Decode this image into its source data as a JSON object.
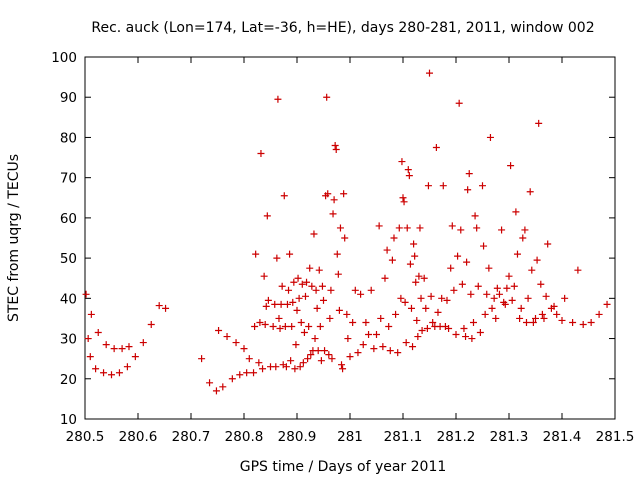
{
  "chart_data": {
    "type": "scatter",
    "title": "Rec. auck (Lon=174, Lat=-36, h=HE), days 280-281, 2011, window 002",
    "xlabel": "GPS time / Days of year 2011",
    "ylabel": "STEC from uqrg / TECUs",
    "xlim": [
      280.5,
      281.5
    ],
    "ylim": [
      10,
      100
    ],
    "xticks": [
      280.5,
      280.6,
      280.7,
      280.8,
      280.9,
      281.0,
      281.1,
      281.2,
      281.3,
      281.4,
      281.5
    ],
    "xtick_labels": [
      "280.5",
      "280.6",
      "280.7",
      "280.8",
      "280.9",
      "281",
      "281.1",
      "281.2",
      "281.3",
      "281.4",
      "281.5"
    ],
    "yticks": [
      10,
      20,
      30,
      40,
      50,
      60,
      70,
      80,
      90,
      100
    ],
    "ytick_labels": [
      "10",
      "20",
      "30",
      "40",
      "50",
      "60",
      "70",
      "80",
      "90",
      "100"
    ],
    "marker": "+",
    "color": "#cc0000",
    "grid": false,
    "series": [
      {
        "points": [
          [
            280.502,
            41
          ],
          [
            280.506,
            30
          ],
          [
            280.51,
            25.5
          ],
          [
            280.512,
            36
          ],
          [
            280.52,
            22.5
          ],
          [
            280.525,
            31.5
          ],
          [
            280.535,
            21.5
          ],
          [
            280.54,
            28.5
          ],
          [
            280.55,
            21
          ],
          [
            280.555,
            27.5
          ],
          [
            280.565,
            21.5
          ],
          [
            280.57,
            27.5
          ],
          [
            280.58,
            23
          ],
          [
            280.583,
            28
          ],
          [
            280.595,
            25.5
          ],
          [
            280.61,
            29
          ],
          [
            280.625,
            33.5
          ],
          [
            280.64,
            38.2
          ],
          [
            280.652,
            37.5
          ],
          [
            280.72,
            25
          ],
          [
            280.735,
            19
          ],
          [
            280.748,
            17
          ],
          [
            280.752,
            32
          ],
          [
            280.76,
            18
          ],
          [
            280.768,
            30.5
          ],
          [
            280.778,
            20
          ],
          [
            280.785,
            29
          ],
          [
            280.792,
            21
          ],
          [
            280.8,
            27.5
          ],
          [
            280.805,
            21.5
          ],
          [
            280.81,
            25
          ],
          [
            280.818,
            21.5
          ],
          [
            280.82,
            33
          ],
          [
            280.822,
            51
          ],
          [
            280.828,
            24
          ],
          [
            280.83,
            34
          ],
          [
            280.832,
            76
          ],
          [
            280.835,
            22.5
          ],
          [
            280.838,
            45.5
          ],
          [
            280.84,
            33.5
          ],
          [
            280.842,
            38
          ],
          [
            280.844,
            60.5
          ],
          [
            280.846,
            39.5
          ],
          [
            280.85,
            23
          ],
          [
            280.855,
            33
          ],
          [
            280.858,
            38.5
          ],
          [
            280.86,
            23
          ],
          [
            280.862,
            50
          ],
          [
            280.864,
            89.5
          ],
          [
            280.866,
            35
          ],
          [
            280.868,
            32.5
          ],
          [
            280.87,
            38.5
          ],
          [
            280.872,
            43
          ],
          [
            280.874,
            23.5
          ],
          [
            280.876,
            65.5
          ],
          [
            280.878,
            33
          ],
          [
            280.88,
            23
          ],
          [
            280.882,
            38.5
          ],
          [
            280.884,
            42
          ],
          [
            280.886,
            51
          ],
          [
            280.888,
            24.5
          ],
          [
            280.89,
            33
          ],
          [
            280.892,
            39
          ],
          [
            280.894,
            44
          ],
          [
            280.896,
            22.5
          ],
          [
            280.898,
            28.5
          ],
          [
            280.9,
            37
          ],
          [
            280.902,
            45
          ],
          [
            280.904,
            40
          ],
          [
            280.906,
            23
          ],
          [
            280.908,
            34
          ],
          [
            280.91,
            43.5
          ],
          [
            280.912,
            24
          ],
          [
            280.914,
            31.5
          ],
          [
            280.916,
            40.5
          ],
          [
            280.918,
            44
          ],
          [
            280.92,
            25
          ],
          [
            280.922,
            33
          ],
          [
            280.924,
            47.5
          ],
          [
            280.926,
            26
          ],
          [
            280.928,
            43
          ],
          [
            280.93,
            27
          ],
          [
            280.932,
            56
          ],
          [
            280.934,
            30
          ],
          [
            280.936,
            42
          ],
          [
            280.938,
            37.5
          ],
          [
            280.94,
            27
          ],
          [
            280.942,
            47
          ],
          [
            280.944,
            33
          ],
          [
            280.946,
            24.5
          ],
          [
            280.948,
            43
          ],
          [
            280.95,
            39.5
          ],
          [
            280.952,
            27
          ],
          [
            280.954,
            65.5
          ],
          [
            280.956,
            90
          ],
          [
            280.958,
            66
          ],
          [
            280.96,
            26
          ],
          [
            280.962,
            35
          ],
          [
            280.964,
            42
          ],
          [
            280.966,
            25
          ],
          [
            280.968,
            61
          ],
          [
            280.97,
            64.5
          ],
          [
            280.972,
            78
          ],
          [
            280.974,
            77
          ],
          [
            280.976,
            51
          ],
          [
            280.978,
            46
          ],
          [
            280.98,
            37
          ],
          [
            280.982,
            57.5
          ],
          [
            280.984,
            23.5
          ],
          [
            280.986,
            22.5
          ],
          [
            280.988,
            66
          ],
          [
            280.99,
            55
          ],
          [
            280.994,
            36
          ],
          [
            280.996,
            30
          ],
          [
            281.0,
            25.5
          ],
          [
            281.005,
            34
          ],
          [
            281.01,
            42
          ],
          [
            281.015,
            26.5
          ],
          [
            281.02,
            41
          ],
          [
            281.025,
            28.5
          ],
          [
            281.03,
            34
          ],
          [
            281.035,
            31
          ],
          [
            281.04,
            42
          ],
          [
            281.045,
            27.5
          ],
          [
            281.05,
            31
          ],
          [
            281.055,
            58
          ],
          [
            281.058,
            35
          ],
          [
            281.062,
            28
          ],
          [
            281.066,
            45
          ],
          [
            281.07,
            52
          ],
          [
            281.073,
            33
          ],
          [
            281.076,
            27
          ],
          [
            281.08,
            49.5
          ],
          [
            281.083,
            55
          ],
          [
            281.086,
            36
          ],
          [
            281.09,
            26.5
          ],
          [
            281.093,
            57.5
          ],
          [
            281.096,
            40
          ],
          [
            281.098,
            74
          ],
          [
            281.1,
            65
          ],
          [
            281.102,
            64
          ],
          [
            281.104,
            39
          ],
          [
            281.106,
            29
          ],
          [
            281.108,
            57.5
          ],
          [
            281.11,
            72
          ],
          [
            281.112,
            70.5
          ],
          [
            281.114,
            48.5
          ],
          [
            281.116,
            37.5
          ],
          [
            281.118,
            28
          ],
          [
            281.12,
            53.5
          ],
          [
            281.122,
            50.5
          ],
          [
            281.124,
            44
          ],
          [
            281.126,
            34.5
          ],
          [
            281.128,
            30.5
          ],
          [
            281.13,
            45.5
          ],
          [
            281.132,
            57.5
          ],
          [
            281.134,
            40
          ],
          [
            281.136,
            32
          ],
          [
            281.14,
            45
          ],
          [
            281.143,
            37.5
          ],
          [
            281.146,
            32.5
          ],
          [
            281.148,
            68
          ],
          [
            281.15,
            96
          ],
          [
            281.153,
            40.5
          ],
          [
            281.156,
            34
          ],
          [
            281.16,
            33
          ],
          [
            281.163,
            77.5
          ],
          [
            281.166,
            36.5
          ],
          [
            281.17,
            33
          ],
          [
            281.173,
            40
          ],
          [
            281.176,
            68
          ],
          [
            281.18,
            33
          ],
          [
            281.183,
            39.5
          ],
          [
            281.186,
            32.5
          ],
          [
            281.19,
            47.5
          ],
          [
            281.193,
            58
          ],
          [
            281.196,
            42
          ],
          [
            281.2,
            31
          ],
          [
            281.203,
            50.5
          ],
          [
            281.206,
            88.5
          ],
          [
            281.209,
            57
          ],
          [
            281.212,
            43.5
          ],
          [
            281.215,
            32.5
          ],
          [
            281.218,
            30.5
          ],
          [
            281.22,
            49
          ],
          [
            281.222,
            67
          ],
          [
            281.225,
            71
          ],
          [
            281.228,
            41
          ],
          [
            281.23,
            30
          ],
          [
            281.233,
            34
          ],
          [
            281.236,
            60.5
          ],
          [
            281.239,
            57.5
          ],
          [
            281.242,
            43
          ],
          [
            281.246,
            31.5
          ],
          [
            281.25,
            68
          ],
          [
            281.252,
            53
          ],
          [
            281.255,
            36
          ],
          [
            281.258,
            41
          ],
          [
            281.262,
            47.5
          ],
          [
            281.265,
            80
          ],
          [
            281.268,
            37.5
          ],
          [
            281.272,
            40
          ],
          [
            281.275,
            35
          ],
          [
            281.278,
            42.5
          ],
          [
            281.282,
            41
          ],
          [
            281.286,
            57
          ],
          [
            281.29,
            39
          ],
          [
            281.293,
            38.5
          ],
          [
            281.296,
            42.5
          ],
          [
            281.3,
            45.5
          ],
          [
            281.303,
            73
          ],
          [
            281.306,
            39.5
          ],
          [
            281.31,
            43
          ],
          [
            281.313,
            61.5
          ],
          [
            281.316,
            51
          ],
          [
            281.32,
            35
          ],
          [
            281.323,
            37.5
          ],
          [
            281.326,
            55
          ],
          [
            281.33,
            57
          ],
          [
            281.333,
            34
          ],
          [
            281.336,
            40
          ],
          [
            281.34,
            66.5
          ],
          [
            281.343,
            47
          ],
          [
            281.346,
            34
          ],
          [
            281.35,
            35
          ],
          [
            281.353,
            49.5
          ],
          [
            281.356,
            83.5
          ],
          [
            281.36,
            43.5
          ],
          [
            281.363,
            36
          ],
          [
            281.366,
            35
          ],
          [
            281.37,
            40.5
          ],
          [
            281.373,
            53.5
          ],
          [
            281.38,
            37.5
          ],
          [
            281.385,
            38
          ],
          [
            281.39,
            36
          ],
          [
            281.4,
            34.5
          ],
          [
            281.405,
            40
          ],
          [
            281.42,
            34
          ],
          [
            281.43,
            47
          ],
          [
            281.44,
            33.5
          ],
          [
            281.455,
            34
          ],
          [
            281.47,
            36
          ],
          [
            281.485,
            38.5
          ]
        ]
      }
    ]
  }
}
